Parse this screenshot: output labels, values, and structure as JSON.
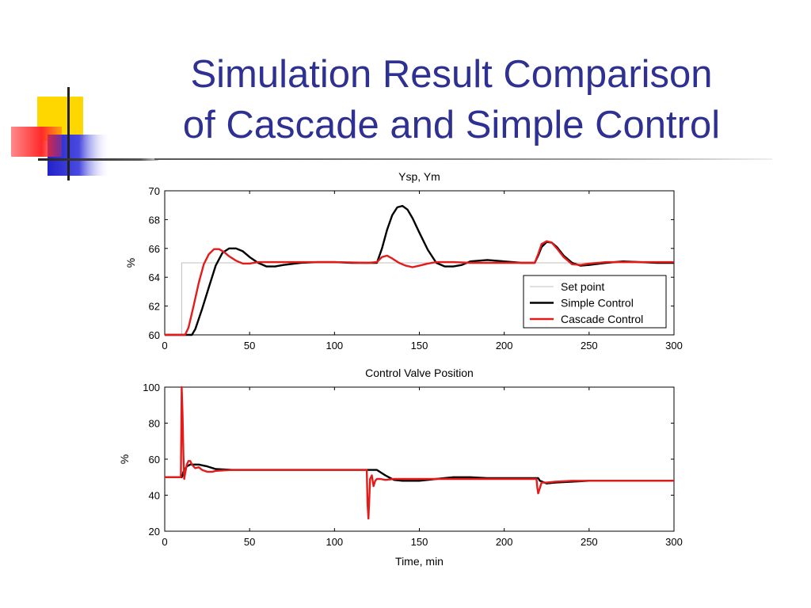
{
  "slide": {
    "title_line1": "Simulation Result Comparison",
    "title_line2": "of Cascade and Simple Control"
  },
  "colors": {
    "title": "#2e3192",
    "simple": "#000000",
    "cascade": "#e31b1b",
    "setpoint": "#c0c0c0",
    "deco_yellow": "#ffd700",
    "deco_blue": "#2b2bd6",
    "deco_red": "#ff3333"
  },
  "chart_data": [
    {
      "type": "line",
      "title": "Ysp, Ym",
      "ylabel": "%",
      "xlabel": "",
      "xlim": [
        0,
        300
      ],
      "ylim": [
        60,
        70
      ],
      "xticks": [
        0,
        50,
        100,
        150,
        200,
        250,
        300
      ],
      "yticks": [
        60,
        62,
        64,
        66,
        68,
        70
      ],
      "grid": false,
      "legend": "right, lower",
      "series": [
        {
          "name": "Set point",
          "color": "#c0c0c0",
          "x": [
            0,
            10,
            10,
            300
          ],
          "y": [
            60,
            60,
            65,
            65
          ]
        },
        {
          "name": "Simple Control",
          "color": "#000000",
          "x": [
            0,
            16,
            18,
            22,
            26,
            30,
            34,
            38,
            42,
            46,
            50,
            55,
            60,
            65,
            70,
            80,
            90,
            100,
            110,
            120,
            125,
            128,
            131,
            134,
            137,
            140,
            143,
            146,
            150,
            155,
            160,
            165,
            170,
            175,
            180,
            190,
            200,
            210,
            218,
            220,
            222,
            225,
            228,
            231,
            235,
            240,
            245,
            250,
            260,
            270,
            280,
            290,
            300
          ],
          "y": [
            60,
            60,
            60.4,
            61.8,
            63.3,
            64.8,
            65.7,
            66.0,
            66.0,
            65.8,
            65.4,
            65.0,
            64.75,
            64.75,
            64.85,
            65.0,
            65.05,
            65.05,
            65.0,
            65.0,
            65.0,
            66.0,
            67.3,
            68.3,
            68.85,
            68.95,
            68.7,
            68.1,
            67.1,
            65.9,
            65.0,
            64.75,
            64.75,
            64.85,
            65.1,
            65.2,
            65.1,
            65.0,
            65.0,
            65.5,
            66.1,
            66.45,
            66.4,
            66.1,
            65.5,
            65.0,
            64.8,
            64.85,
            65.0,
            65.1,
            65.05,
            65.0,
            65.0
          ]
        },
        {
          "name": "Cascade Control",
          "color": "#e31b1b",
          "x": [
            0,
            12,
            14,
            17,
            20,
            23,
            26,
            29,
            32,
            35,
            38,
            42,
            46,
            50,
            55,
            60,
            70,
            80,
            100,
            120,
            125,
            128,
            131,
            134,
            138,
            142,
            146,
            150,
            155,
            160,
            170,
            180,
            200,
            218,
            220,
            222,
            225,
            228,
            231,
            235,
            240,
            245,
            250,
            260,
            280,
            300
          ],
          "y": [
            60,
            60,
            60.5,
            62.0,
            63.6,
            64.9,
            65.6,
            65.95,
            65.95,
            65.75,
            65.45,
            65.15,
            64.95,
            64.95,
            65.05,
            65.05,
            65.05,
            65.05,
            65.05,
            65.0,
            65.05,
            65.4,
            65.5,
            65.3,
            65.0,
            64.8,
            64.7,
            64.8,
            64.95,
            65.05,
            65.05,
            65.0,
            65.0,
            65.0,
            65.6,
            66.3,
            66.5,
            66.4,
            66.0,
            65.4,
            64.9,
            64.85,
            64.95,
            65.05,
            65.05,
            65.05
          ]
        }
      ]
    },
    {
      "type": "line",
      "title": "Control Valve Position",
      "ylabel": "%",
      "xlabel": "Time, min",
      "xlim": [
        0,
        300
      ],
      "ylim": [
        20,
        100
      ],
      "xticks": [
        0,
        50,
        100,
        150,
        200,
        250,
        300
      ],
      "yticks": [
        20,
        40,
        60,
        80,
        100
      ],
      "grid": false,
      "series": [
        {
          "name": "Simple Control",
          "color": "#000000",
          "x": [
            0,
            10,
            10.5,
            11,
            13,
            15,
            20,
            25,
            30,
            40,
            50,
            60,
            80,
            100,
            120,
            125,
            130,
            135,
            140,
            150,
            160,
            170,
            180,
            190,
            200,
            210,
            220,
            221,
            225,
            230,
            240,
            250,
            260,
            280,
            300
          ],
          "y": [
            50,
            50,
            51,
            53,
            56,
            57,
            57,
            56,
            54.5,
            54,
            54,
            54,
            54,
            54,
            54,
            54,
            51,
            48.5,
            48,
            48,
            49,
            50,
            50,
            49.5,
            49.5,
            49.5,
            49.5,
            48,
            46.5,
            47,
            47.5,
            48,
            48,
            48,
            48
          ]
        },
        {
          "name": "Cascade Control",
          "color": "#e31b1b",
          "x": [
            0,
            9.5,
            10,
            10.5,
            11,
            11.5,
            12,
            13,
            14,
            15,
            16,
            18,
            20,
            22,
            25,
            28,
            30,
            40,
            50,
            100,
            119,
            119.5,
            120,
            120.5,
            121,
            122,
            123,
            124,
            125,
            127,
            130,
            135,
            140,
            150,
            200,
            219,
            219.5,
            220,
            221,
            222,
            223,
            225,
            230,
            240,
            250,
            300
          ],
          "y": [
            50,
            50,
            100,
            85,
            62,
            49,
            52,
            57,
            59,
            59,
            57,
            55,
            55.5,
            54,
            53,
            53,
            53.5,
            54,
            54,
            54,
            54,
            35,
            27,
            38,
            49,
            51,
            45,
            48,
            49,
            49,
            48.5,
            49,
            49,
            49,
            49,
            49,
            44,
            41,
            44,
            47,
            47,
            47,
            47.5,
            48,
            48,
            48
          ]
        }
      ]
    }
  ]
}
